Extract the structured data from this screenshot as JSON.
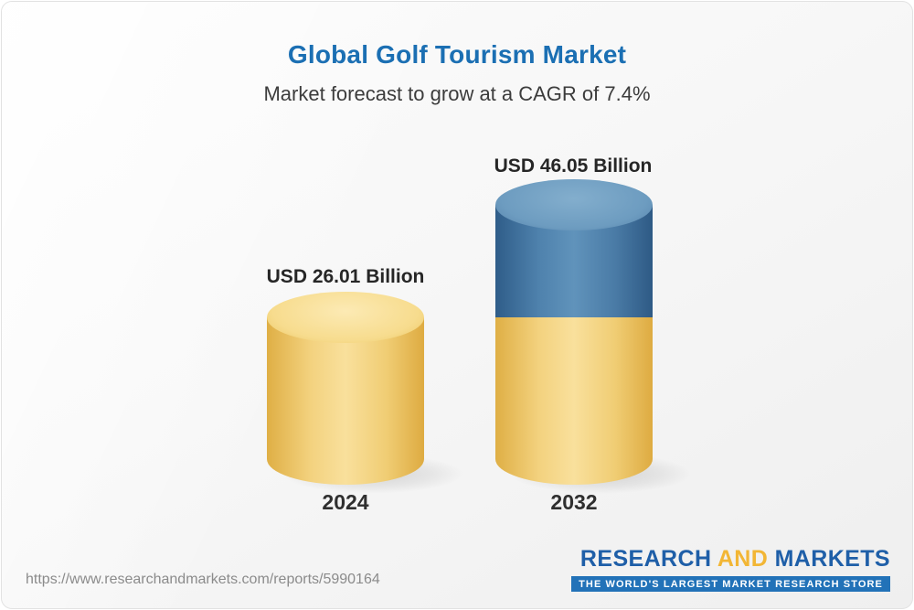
{
  "header": {
    "title": "Global Golf Tourism Market",
    "subtitle": "Market forecast to grow at a CAGR of 7.4%"
  },
  "chart_data": {
    "type": "bar",
    "style": "3d-cylinder",
    "title": "Global Golf Tourism Market",
    "subtitle": "Market forecast to grow at a CAGR of 7.4%",
    "categories": [
      "2024",
      "2032"
    ],
    "values": [
      26.01,
      46.05
    ],
    "value_labels": [
      "USD 26.01 Billion",
      "USD 46.05 Billion"
    ],
    "unit": "USD Billion",
    "cagr_percent": 7.4,
    "legend_position": "none",
    "grid": false,
    "colors": {
      "base_segment": "#f0cd74",
      "growth_segment": "#4f82ad"
    },
    "notes": "2032 cylinder is stacked: lower yellow segment equals the 2024 base value, upper blue segment represents forecast growth to 46.05"
  },
  "footer": {
    "url": "https://www.researchandmarkets.com/reports/5990164",
    "logo": {
      "part1": "RESEARCH",
      "part2": "AND",
      "part3": "MARKETS",
      "tagline": "THE WORLD'S LARGEST MARKET RESEARCH STORE"
    }
  }
}
